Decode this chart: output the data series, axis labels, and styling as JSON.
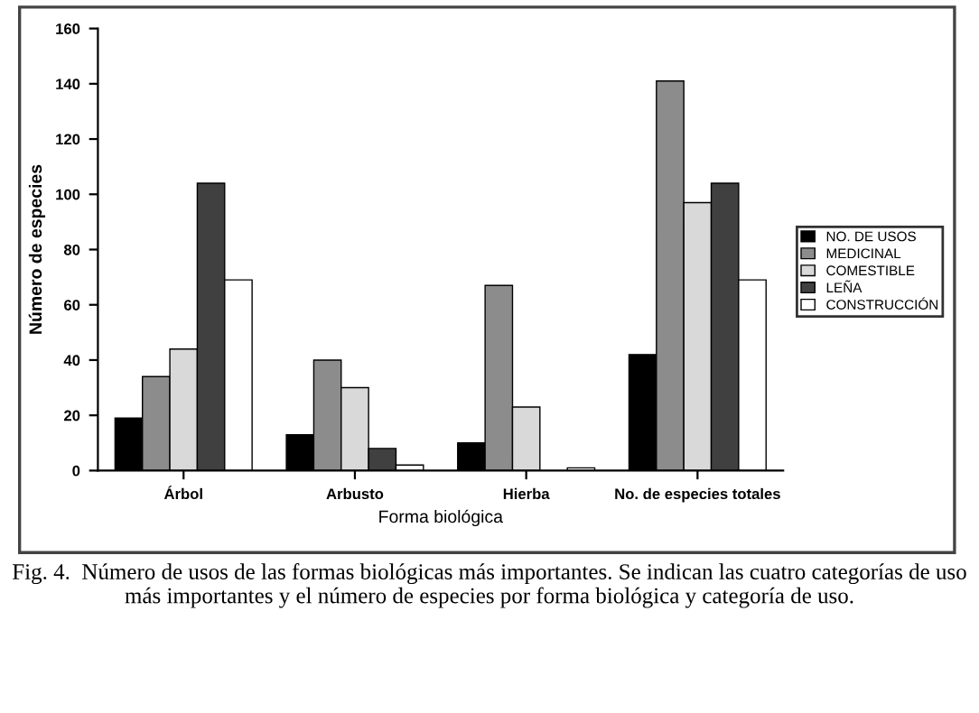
{
  "chart_data": {
    "type": "bar",
    "categories": [
      "Árbol",
      "Arbusto",
      "Hierba",
      "No. de especies totales"
    ],
    "series": [
      {
        "name": "NO. DE USOS",
        "color": "#000000",
        "values": [
          19,
          13,
          10,
          42
        ]
      },
      {
        "name": "MEDICINAL",
        "color": "#8c8c8c",
        "values": [
          34,
          40,
          67,
          141
        ]
      },
      {
        "name": "COMESTIBLE",
        "color": "#d9d9d9",
        "values": [
          44,
          30,
          23,
          97
        ]
      },
      {
        "name": "LEÑA",
        "color": "#404040",
        "values": [
          104,
          8,
          null,
          104
        ]
      },
      {
        "name": "CONSTRUCCIÓN",
        "color": "#ffffff",
        "values": [
          69,
          2,
          1,
          69
        ]
      }
    ],
    "xlabel": "Forma biológica",
    "ylabel": "Número de especies",
    "ylim": [
      0,
      160
    ],
    "yticks": [
      0,
      20,
      40,
      60,
      80,
      100,
      120,
      140,
      160
    ],
    "grid": false,
    "legend": "right",
    "annotations": [
      "Fig. 4.  Número de usos de las formas biológicas más importantes. Se indican las cuatro categorías de uso más importantes y el número de especies por forma biológica y categoría de uso."
    ]
  }
}
